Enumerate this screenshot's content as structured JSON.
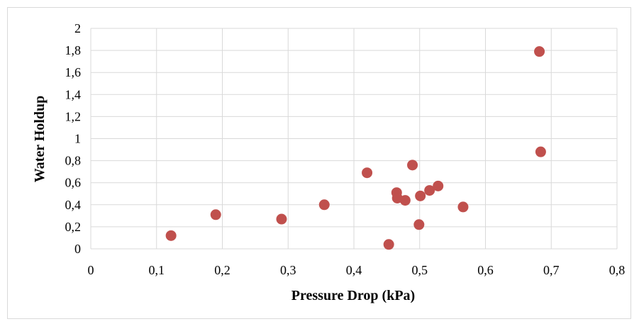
{
  "chart_data": {
    "type": "scatter",
    "title": "",
    "xlabel": "Pressure Drop (kPa)",
    "ylabel": "Water Holdup",
    "xlim": [
      0,
      0.8
    ],
    "ylim": [
      0,
      2
    ],
    "x_ticks": [
      "0",
      "0,1",
      "0,2",
      "0,3",
      "0,4",
      "0,5",
      "0,6",
      "0,7",
      "0,8"
    ],
    "y_ticks": [
      "0",
      "0,2",
      "0,4",
      "0,6",
      "0,8",
      "1",
      "1,2",
      "1,4",
      "1,6",
      "1,8",
      "2"
    ],
    "grid": true,
    "legend": "none",
    "marker_color": "#c0504d",
    "series": [
      {
        "points": [
          {
            "x": 0.122,
            "y": 0.12
          },
          {
            "x": 0.19,
            "y": 0.31
          },
          {
            "x": 0.29,
            "y": 0.27
          },
          {
            "x": 0.355,
            "y": 0.4
          },
          {
            "x": 0.42,
            "y": 0.69
          },
          {
            "x": 0.453,
            "y": 0.04
          },
          {
            "x": 0.465,
            "y": 0.51
          },
          {
            "x": 0.466,
            "y": 0.46
          },
          {
            "x": 0.478,
            "y": 0.44
          },
          {
            "x": 0.489,
            "y": 0.76
          },
          {
            "x": 0.499,
            "y": 0.22
          },
          {
            "x": 0.501,
            "y": 0.48
          },
          {
            "x": 0.515,
            "y": 0.53
          },
          {
            "x": 0.528,
            "y": 0.57
          },
          {
            "x": 0.566,
            "y": 0.38
          },
          {
            "x": 0.682,
            "y": 1.79
          },
          {
            "x": 0.684,
            "y": 0.88
          }
        ]
      }
    ]
  }
}
